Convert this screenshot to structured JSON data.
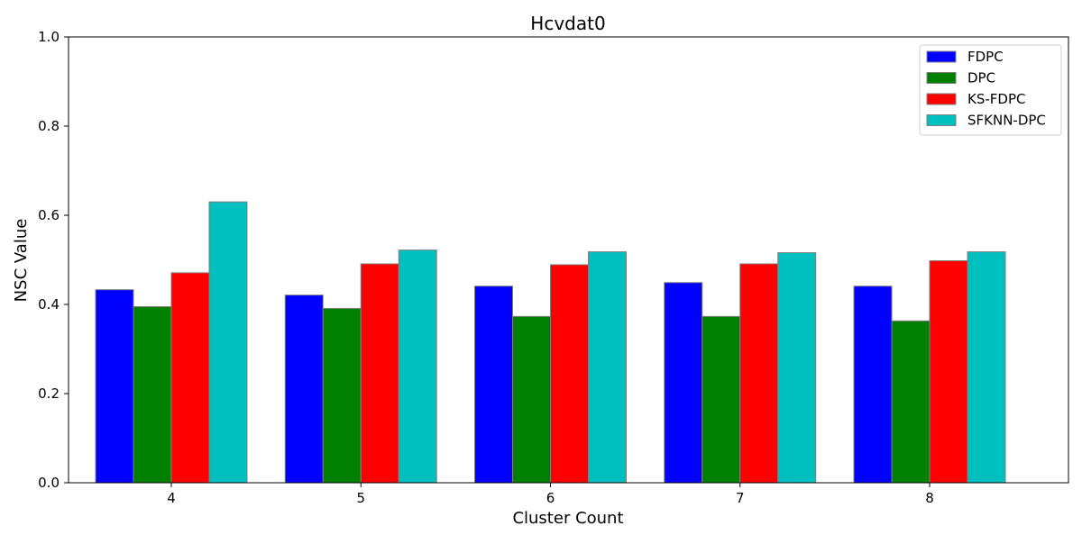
{
  "chart_data": {
    "type": "bar",
    "title": "Hcvdat0",
    "xlabel": "Cluster Count",
    "ylabel": "NSC Value",
    "ylim": [
      0,
      1.0
    ],
    "yticks": [
      "0.0",
      "0.2",
      "0.4",
      "0.6",
      "0.8",
      "1.0"
    ],
    "ytick_values": [
      0,
      0.2,
      0.4,
      0.6,
      0.8,
      1.0
    ],
    "categories": [
      "4",
      "5",
      "6",
      "7",
      "8"
    ],
    "series": [
      {
        "name": "FDPC",
        "color": "#0000ff",
        "values": [
          0.433,
          0.421,
          0.441,
          0.449,
          0.441
        ]
      },
      {
        "name": "DPC",
        "color": "#008000",
        "values": [
          0.395,
          0.391,
          0.373,
          0.373,
          0.363
        ]
      },
      {
        "name": "KS-FDPC",
        "color": "#ff0000",
        "values": [
          0.471,
          0.491,
          0.489,
          0.491,
          0.498
        ]
      },
      {
        "name": "SFKNN-DPC",
        "color": "#00bfbf",
        "values": [
          0.63,
          0.522,
          0.518,
          0.516,
          0.518
        ]
      }
    ],
    "grid": false,
    "legend_position": "top-right",
    "bar_edge_color": "#808080"
  }
}
